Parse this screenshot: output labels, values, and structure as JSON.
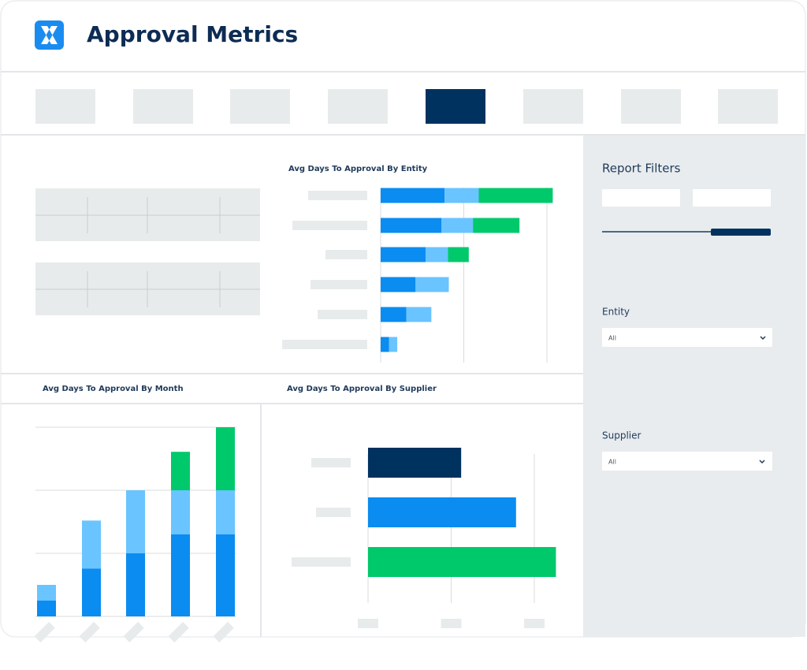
{
  "header": {
    "title": "Approval Metrics"
  },
  "filters": {
    "title": "Report Filters",
    "entity": {
      "label": "Entity",
      "value": "All"
    },
    "supplier": {
      "label": "Supplier",
      "value": "All"
    }
  },
  "chart_data": [
    {
      "type": "stacked-hbar",
      "title": "Avg Days To Approval By Entity",
      "categories": [
        null,
        null,
        null,
        null,
        null,
        null
      ],
      "series": [
        {
          "color": "#0a8cf0",
          "values": [
            0.77,
            0.73,
            0.54,
            0.42,
            0.31,
            0.1
          ]
        },
        {
          "color": "#6ac4ff",
          "values": [
            0.41,
            0.38,
            0.27,
            0.4,
            0.3,
            0.1
          ]
        },
        {
          "color": "#00c96b",
          "values": [
            0.89,
            0.56,
            0.25,
            0,
            0,
            0
          ]
        }
      ],
      "xlim": [
        0,
        2
      ],
      "xticks": [
        0,
        1,
        2
      ],
      "grid": true
    },
    {
      "type": "stacked-bar",
      "title": "Avg Days To Approval By Month",
      "categories": [
        null,
        null,
        null,
        null,
        null
      ],
      "series": [
        {
          "color": "#0a8cf0",
          "values": [
            0.25,
            0.76,
            1,
            1.3,
            1.3
          ]
        },
        {
          "color": "#6ac4ff",
          "values": [
            0.25,
            0.76,
            1,
            0.7,
            0.7
          ]
        },
        {
          "color": "#00c96b",
          "values": [
            0,
            0,
            0,
            0.61,
            1
          ]
        }
      ],
      "ylim": [
        0,
        3
      ],
      "yticks": [
        0,
        1,
        2,
        3
      ],
      "grid": true
    },
    {
      "type": "hbar",
      "title": "Avg Days To Approval By Supplier",
      "categories": [
        null,
        null,
        null
      ],
      "values": [
        1.12,
        1.78,
        2.26
      ],
      "colors": [
        "#003260",
        "#0a8cf0",
        "#00c96b"
      ],
      "xlim": [
        0,
        2
      ],
      "xticks": [
        0,
        1,
        2
      ],
      "grid": true
    }
  ]
}
